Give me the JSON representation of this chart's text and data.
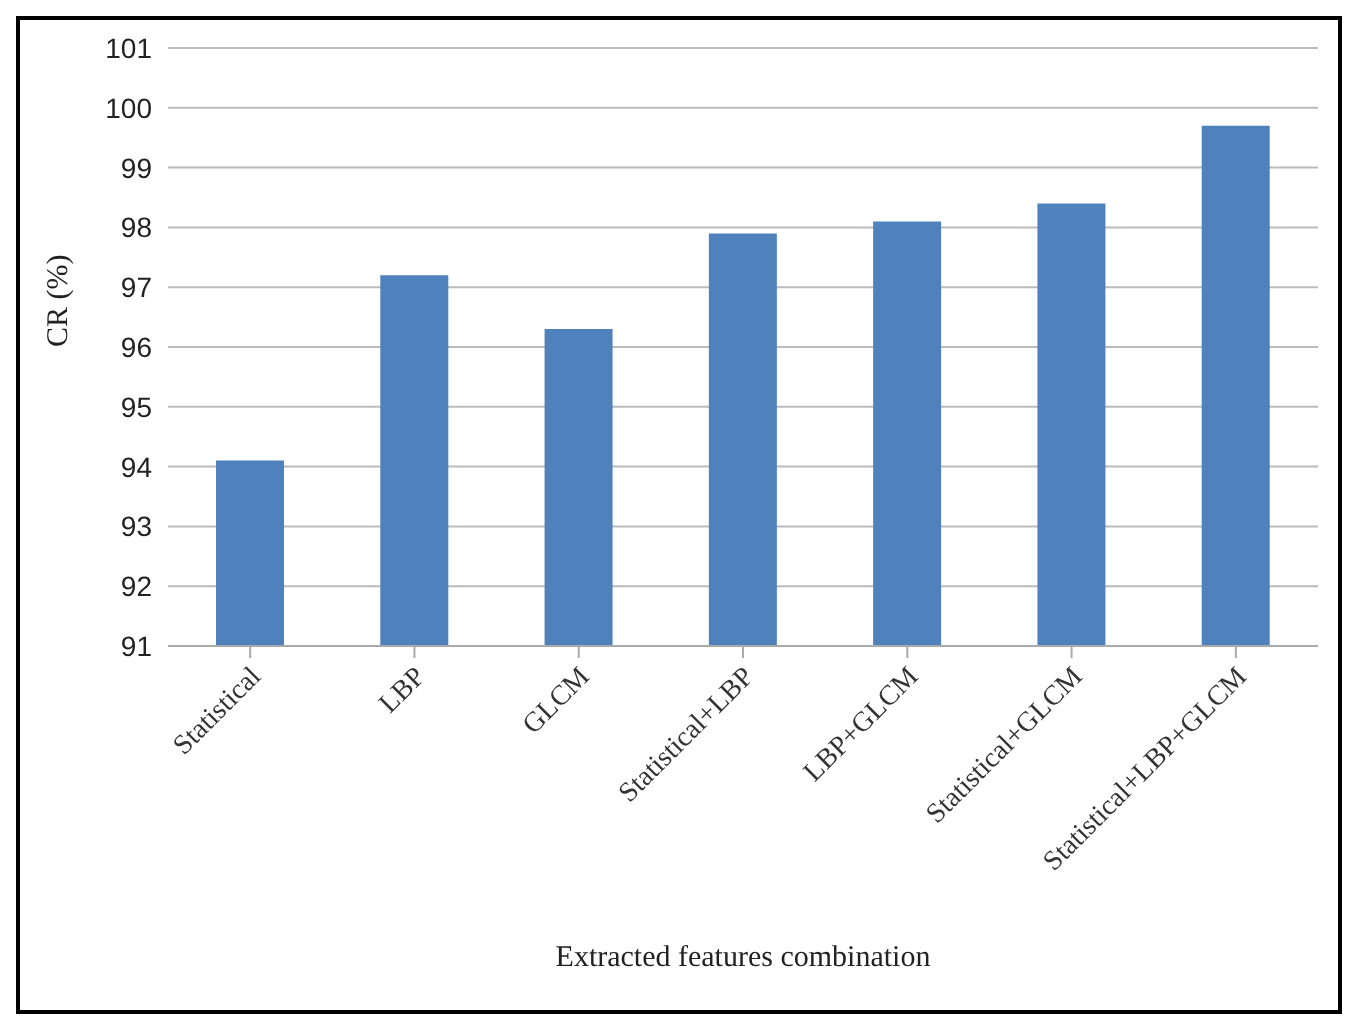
{
  "chart_data": {
    "type": "bar",
    "xlabel": "Extracted features combination",
    "ylabel": "CR  (%)",
    "categories": [
      "Statistical",
      "LBP",
      "GLCM",
      "Statistical+LBP",
      "LBP+GLCM",
      "Statistical+GLCM",
      "Statistical+LBP+GLCM"
    ],
    "values": [
      94.1,
      97.2,
      96.3,
      97.9,
      98.1,
      98.4,
      99.7
    ],
    "color": "#4f81bd",
    "ylim": [
      91,
      101
    ],
    "yticks": [
      91,
      92,
      93,
      94,
      95,
      96,
      97,
      98,
      99,
      100,
      101
    ],
    "grid": "y"
  }
}
